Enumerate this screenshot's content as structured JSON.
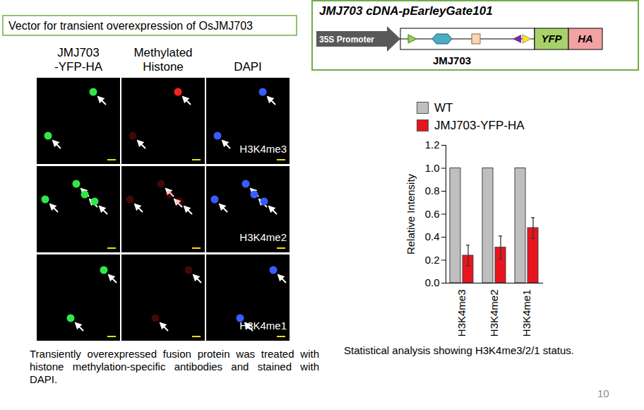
{
  "header": {
    "text": "Vector for transient overexpression of OsJMJ703"
  },
  "vector": {
    "title": "JMJ703 cDNA-pEarleyGate101",
    "promoter": "35S Promoter",
    "insert": "JMJ703",
    "tags": [
      "YFP",
      "HA"
    ]
  },
  "micrograph": {
    "columns": [
      [
        "JMJ703",
        "-YFP-HA"
      ],
      [
        "Methylated",
        "Histone"
      ],
      [
        "DAPI"
      ]
    ],
    "rows": [
      "H3K4me3",
      "H3K4me2",
      "H3K4me1"
    ]
  },
  "figure_caption": "Transiently overexpressed fusion protein was treated with histone methylation-specific antibodies and stained with DAPI.",
  "chart_caption": "Statistical analysis showing H3K4me3/2/1 status.",
  "page_number": "10",
  "chart_data": {
    "type": "bar",
    "categories": [
      "H3K4me3",
      "H3K4me2",
      "H3K4me1"
    ],
    "series": [
      {
        "name": "WT",
        "color": "#bfbfbf",
        "values": [
          1.0,
          1.0,
          1.0
        ]
      },
      {
        "name": "JMJ703-YFP-HA",
        "color": "#e8141e",
        "values": [
          0.24,
          0.31,
          0.48
        ],
        "errors": [
          0.09,
          0.1,
          0.09
        ]
      }
    ],
    "y_label": "Relative Intensity",
    "ylim": [
      0,
      1.2
    ],
    "yticks": [
      {
        "value": 0,
        "label": "0.0"
      },
      0.2,
      0.4,
      0.6,
      0.8,
      {
        "value": 1,
        "label": "1.0"
      },
      1.2
    ],
    "legend": "top",
    "grid": false
  }
}
